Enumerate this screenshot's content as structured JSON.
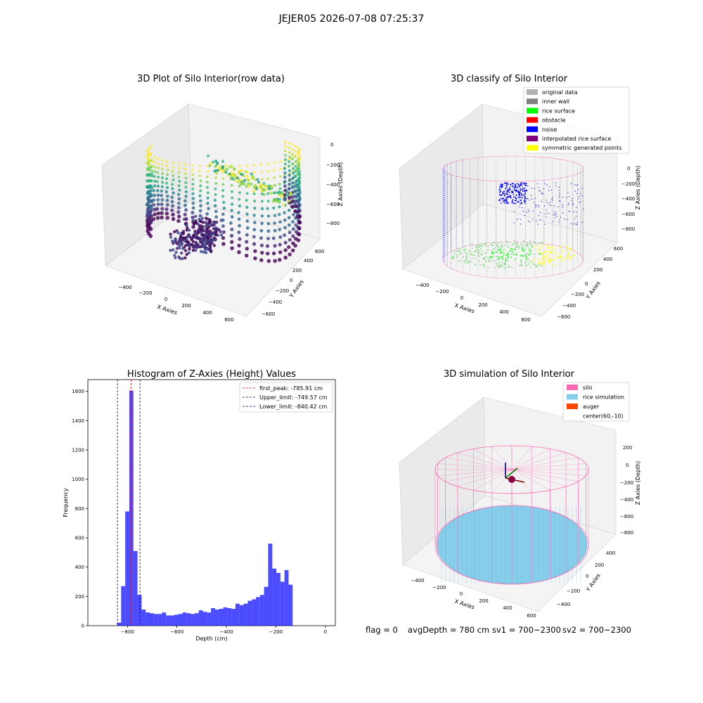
{
  "figure": {
    "suptitle": "JEJER05 2026-07-08 07:25:37",
    "status": {
      "flag": "flag = 0",
      "avg_depth": "avgDepth = 780 cm",
      "sv1": "sv1 = 700~2300",
      "sv2": "sv2 = 700~2300"
    }
  },
  "plot3d_raw": {
    "title": "3D Plot of Silo Interior(row data)",
    "xlabel": "X Axies",
    "ylabel": "Y Axies",
    "zlabel": "Z Axies (Depth)",
    "xticks": [
      "−400",
      "−200",
      "0",
      "200",
      "400",
      "600"
    ],
    "yticks": [
      "−600",
      "−400",
      "−200",
      "0",
      "200",
      "400",
      "600"
    ],
    "zticks": [
      "−800",
      "−600",
      "−400",
      "−200",
      "0"
    ]
  },
  "plot3d_classify": {
    "title": "3D classify of Silo Interior",
    "xlabel": "X Axies",
    "ylabel": "Y Axies",
    "zlabel": "Z Axies (Depth)",
    "xticks": [
      "−400",
      "−200",
      "0",
      "200",
      "400",
      "600"
    ],
    "yticks": [
      "−600",
      "−400",
      "−200",
      "0",
      "200",
      "400",
      "600"
    ],
    "zticks": [
      "−800",
      "−600",
      "−400",
      "−200",
      "0"
    ],
    "legend": [
      {
        "label": "original data",
        "color": "#b2b2b2"
      },
      {
        "label": "inner wall",
        "color": "#808080"
      },
      {
        "label": "rice surface",
        "color": "#00ff00"
      },
      {
        "label": "obstacle",
        "color": "#ff0000"
      },
      {
        "label": "noise",
        "color": "#0000ff"
      },
      {
        "label": "interpolated rice surface",
        "color": "#800080"
      },
      {
        "label": "symmetric generated points",
        "color": "#ffff00"
      }
    ]
  },
  "plot3d_sim": {
    "title": "3D simulation of Silo Interior",
    "xlabel": "X Axies",
    "ylabel": "Y Axies",
    "zlabel": "Z Axies (Depth)",
    "xticks": [
      "−400",
      "−200",
      "0",
      "200",
      "400",
      "600"
    ],
    "yticks": [
      "−400",
      "−200",
      "0",
      "200",
      "400"
    ],
    "zticks": [
      "−800",
      "−600",
      "−400",
      "−200",
      "0",
      "200"
    ],
    "legend": [
      {
        "label": "silo",
        "color": "#ff69b4"
      },
      {
        "label": "rice simulation",
        "color": "#87ceeb"
      },
      {
        "label": "auger",
        "color": "#ff4500"
      },
      {
        "label": "center(60,-10)",
        "color": "#ffffff"
      }
    ]
  },
  "chart_data": {
    "type": "bar",
    "title": "Histogram of Z-Axies (Height) Values",
    "xlabel": "Depth (cm)",
    "ylabel": "Frequency",
    "xlim": [
      -960,
      40
    ],
    "ylim": [
      0,
      1680
    ],
    "xticks": [
      -800,
      -600,
      -400,
      -200,
      0
    ],
    "yticks": [
      0,
      200,
      400,
      600,
      800,
      1000,
      1200,
      1400,
      1600
    ],
    "bin_width": 16.5,
    "bin_start": -842,
    "bar_color": "#0000ff",
    "values": [
      20,
      270,
      780,
      1605,
      510,
      210,
      110,
      90,
      85,
      80,
      80,
      90,
      70,
      70,
      75,
      80,
      90,
      85,
      80,
      85,
      105,
      95,
      90,
      120,
      110,
      115,
      125,
      120,
      115,
      150,
      140,
      150,
      170,
      180,
      195,
      210,
      265,
      560,
      390,
      360,
      300,
      380,
      280
    ],
    "vlines": [
      {
        "name": "first_peak: -785.91 cm",
        "x": -785.91,
        "color": "#ff0000"
      },
      {
        "name": "Upper_limit: -749.57 cm",
        "x": -749.57,
        "color": "#00008b"
      },
      {
        "name": "Lower_limit: -840.42 cm",
        "x": -840.42,
        "color": "#00008b"
      }
    ],
    "legend_position": "upper right"
  }
}
